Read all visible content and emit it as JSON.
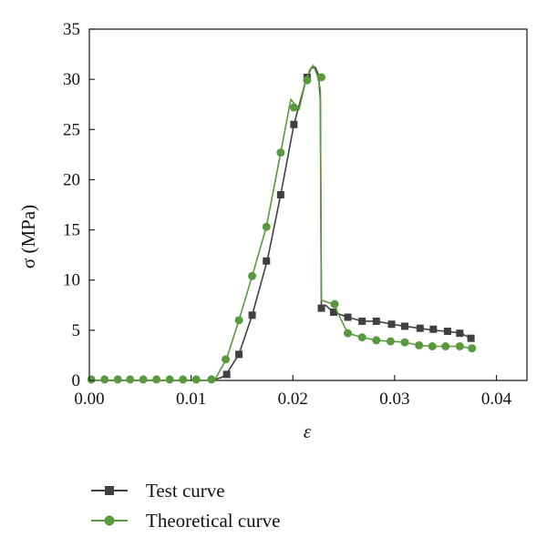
{
  "chart_data": {
    "type": "line",
    "xlabel": "ε",
    "ylabel": "σ (MPa)",
    "xlim": [
      0,
      0.043
    ],
    "ylim": [
      0,
      35
    ],
    "xticks": [
      0,
      0.01,
      0.02,
      0.03,
      0.04
    ],
    "xtick_labels": [
      "0.00",
      "0.01",
      "0.02",
      "0.03",
      "0.04"
    ],
    "yticks": [
      0,
      5,
      10,
      15,
      20,
      25,
      30,
      35
    ],
    "ytick_labels": [
      "0",
      "5",
      "10",
      "15",
      "20",
      "25",
      "30",
      "35"
    ],
    "grid": false,
    "legend_position": "bottom",
    "series": [
      {
        "name": "Test curve",
        "color": "#404040",
        "marker": "square",
        "line": [
          [
            0,
            0
          ],
          [
            0.012,
            0
          ],
          [
            0.013,
            0.3
          ],
          [
            0.0135,
            0.7
          ],
          [
            0.0147,
            2.6
          ],
          [
            0.016,
            6.5
          ],
          [
            0.0175,
            12
          ],
          [
            0.0188,
            18.5
          ],
          [
            0.0201,
            25.5
          ],
          [
            0.0213,
            30
          ],
          [
            0.0218,
            31.1
          ],
          [
            0.0222,
            31.2
          ],
          [
            0.0225,
            30.5
          ],
          [
            0.0227,
            28
          ],
          [
            0.0228,
            7.2
          ],
          [
            0.0232,
            7.5
          ],
          [
            0.024,
            6.8
          ],
          [
            0.0254,
            6.3
          ],
          [
            0.0268,
            5.9
          ],
          [
            0.0282,
            5.9
          ],
          [
            0.0297,
            5.6
          ],
          [
            0.031,
            5.4
          ],
          [
            0.0325,
            5.2
          ],
          [
            0.0338,
            5.0
          ],
          [
            0.0352,
            4.9
          ],
          [
            0.0365,
            4.7
          ],
          [
            0.0375,
            4.2
          ]
        ],
        "markers": [
          [
            0.0135,
            0.6
          ],
          [
            0.0147,
            2.6
          ],
          [
            0.016,
            6.5
          ],
          [
            0.0174,
            11.9
          ],
          [
            0.0188,
            18.5
          ],
          [
            0.0201,
            25.5
          ],
          [
            0.0214,
            30.2
          ],
          [
            0.0228,
            7.2
          ],
          [
            0.024,
            6.8
          ],
          [
            0.0254,
            6.3
          ],
          [
            0.0268,
            5.9
          ],
          [
            0.0282,
            5.9
          ],
          [
            0.0297,
            5.6
          ],
          [
            0.031,
            5.4
          ],
          [
            0.0325,
            5.2
          ],
          [
            0.0338,
            5.1
          ],
          [
            0.0352,
            4.9
          ],
          [
            0.0364,
            4.7
          ],
          [
            0.0375,
            4.2
          ]
        ]
      },
      {
        "name": "Theoretical curve",
        "color": "#5a9a3e",
        "marker": "circle",
        "line": [
          [
            0,
            0
          ],
          [
            0.0123,
            0
          ],
          [
            0.0135,
            2.2
          ],
          [
            0.0147,
            6
          ],
          [
            0.016,
            10.4
          ],
          [
            0.0174,
            15.3
          ],
          [
            0.0188,
            22.7
          ],
          [
            0.0198,
            28
          ],
          [
            0.0206,
            27
          ],
          [
            0.0213,
            30
          ],
          [
            0.0217,
            31
          ],
          [
            0.022,
            31.4
          ],
          [
            0.0224,
            30.4
          ],
          [
            0.0227,
            29
          ],
          [
            0.0228,
            8
          ],
          [
            0.0234,
            7.8
          ],
          [
            0.024,
            7.6
          ],
          [
            0.0254,
            4.7
          ],
          [
            0.0268,
            4.3
          ],
          [
            0.0282,
            4.0
          ],
          [
            0.0296,
            3.9
          ],
          [
            0.031,
            3.8
          ],
          [
            0.0324,
            3.5
          ],
          [
            0.0337,
            3.4
          ],
          [
            0.0352,
            3.4
          ],
          [
            0.0364,
            3.4
          ],
          [
            0.0375,
            3.2
          ]
        ],
        "markers": [
          [
            0.0002,
            0.1
          ],
          [
            0.0015,
            0.1
          ],
          [
            0.0028,
            0.1
          ],
          [
            0.004,
            0.1
          ],
          [
            0.0053,
            0.1
          ],
          [
            0.0066,
            0.1
          ],
          [
            0.0079,
            0.1
          ],
          [
            0.0092,
            0.1
          ],
          [
            0.0105,
            0.1
          ],
          [
            0.012,
            0.1
          ],
          [
            0.0134,
            2.1
          ],
          [
            0.0147,
            6.0
          ],
          [
            0.016,
            10.4
          ],
          [
            0.0174,
            15.3
          ],
          [
            0.0188,
            22.7
          ],
          [
            0.0201,
            27.2
          ],
          [
            0.0214,
            29.9
          ],
          [
            0.0228,
            30.2
          ],
          [
            0.0241,
            7.6
          ],
          [
            0.0254,
            4.7
          ],
          [
            0.0268,
            4.3
          ],
          [
            0.0282,
            4.0
          ],
          [
            0.0296,
            3.9
          ],
          [
            0.031,
            3.8
          ],
          [
            0.0324,
            3.5
          ],
          [
            0.0337,
            3.4
          ],
          [
            0.035,
            3.4
          ],
          [
            0.0364,
            3.4
          ],
          [
            0.0376,
            3.2
          ]
        ]
      }
    ]
  }
}
